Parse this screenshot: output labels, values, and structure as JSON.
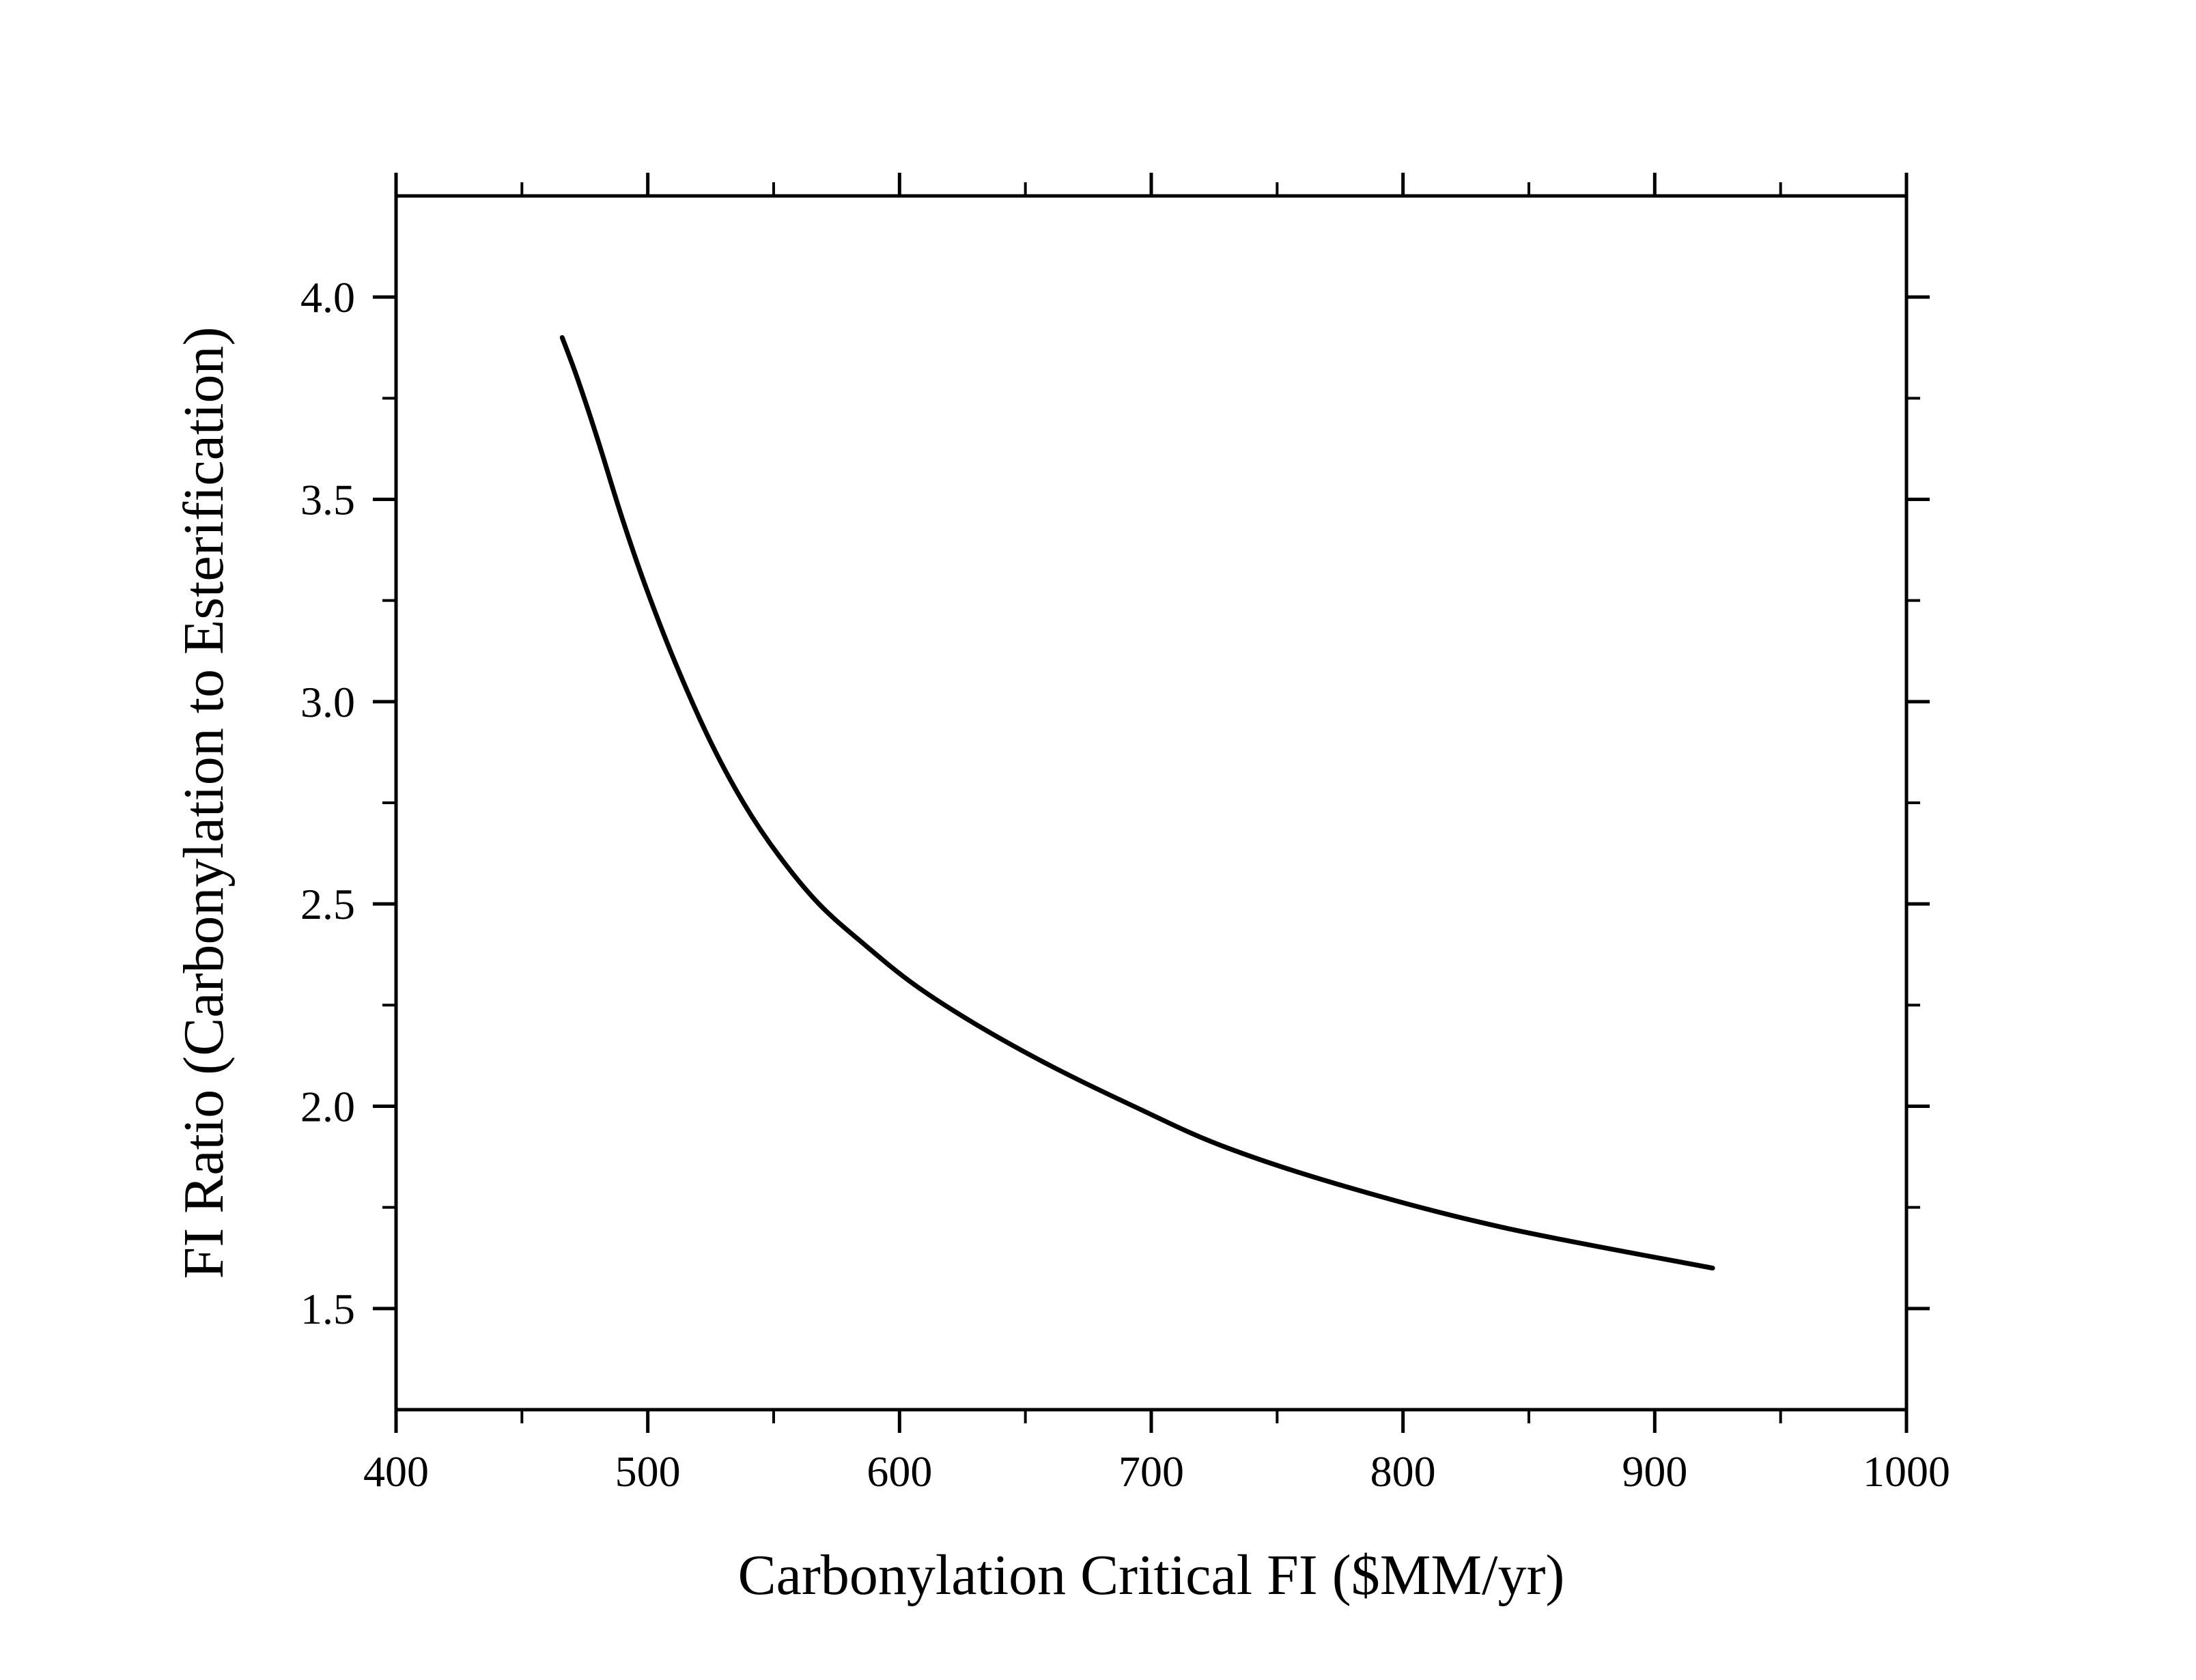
{
  "chart_data": {
    "type": "line",
    "title": "",
    "xlabel": "Carbonylation Critical FI ($MM/yr)",
    "ylabel": "FI Ratio (Carbonylation to Esterification)",
    "xlim": [
      400,
      1000
    ],
    "ylim": [
      1.25,
      4.25
    ],
    "x_ticks": [
      400,
      500,
      600,
      700,
      800,
      900,
      1000
    ],
    "x_tick_labels": [
      "400",
      "500",
      "600",
      "700",
      "800",
      "900",
      "1000"
    ],
    "y_ticks": [
      1.5,
      2.0,
      2.5,
      3.0,
      3.5,
      4.0
    ],
    "y_tick_labels": [
      "1.5",
      "2.0",
      "2.5",
      "3.0",
      "3.5",
      "4.0"
    ],
    "x_minor_step": 50,
    "y_minor_step": 0.25,
    "grid": false,
    "legend": "none",
    "line_color": "#000000",
    "series": [
      {
        "x": [
          466,
          472,
          480,
          490,
          500,
          512,
          525,
          538,
          552,
          568,
          586,
          606,
          631,
          660,
          693,
          729,
          778,
          840,
          923
        ],
        "y": [
          3.9,
          3.8,
          3.65,
          3.45,
          3.27,
          3.08,
          2.9,
          2.75,
          2.62,
          2.5,
          2.4,
          2.3,
          2.2,
          2.1,
          2.0,
          1.9,
          1.8,
          1.7,
          1.6
        ]
      }
    ]
  }
}
